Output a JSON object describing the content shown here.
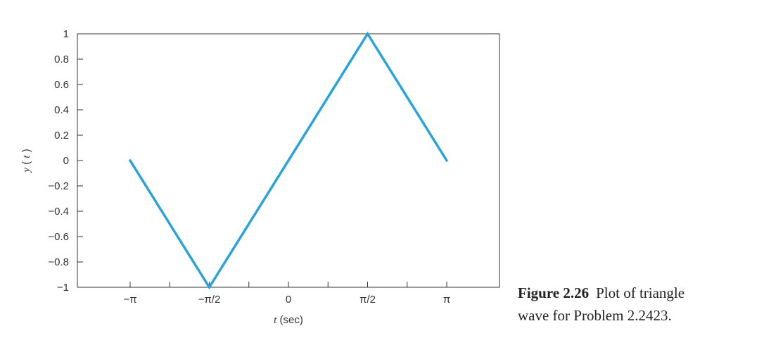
{
  "chart_data": {
    "type": "line",
    "xlabel_var": "t",
    "xlabel_unit": "(sec)",
    "ylabel": "y(t)",
    "ylabel_var": "y",
    "ylabel_arg": "t",
    "x_ticks": [
      {
        "value": -3.14159,
        "label": "−π"
      },
      {
        "value": -2.35619,
        "label": ""
      },
      {
        "value": -1.5708,
        "label": "−π/2"
      },
      {
        "value": -0.7854,
        "label": ""
      },
      {
        "value": 0,
        "label": "0"
      },
      {
        "value": 0.7854,
        "label": ""
      },
      {
        "value": 1.5708,
        "label": "π/2"
      },
      {
        "value": 2.35619,
        "label": ""
      },
      {
        "value": 3.14159,
        "label": "π"
      }
    ],
    "y_ticks": [
      {
        "value": 1,
        "label": "1"
      },
      {
        "value": 0.8,
        "label": "0.8"
      },
      {
        "value": 0.6,
        "label": "0.6"
      },
      {
        "value": 0.4,
        "label": "0.4"
      },
      {
        "value": 0.2,
        "label": "0.2"
      },
      {
        "value": 0,
        "label": "0"
      },
      {
        "value": -0.2,
        "label": "−0.2"
      },
      {
        "value": -0.4,
        "label": "−0.4"
      },
      {
        "value": -0.6,
        "label": "−0.6"
      },
      {
        "value": -0.8,
        "label": "−0.8"
      },
      {
        "value": -1,
        "label": "−1"
      }
    ],
    "xlim": [
      -4.1888,
      4.1888
    ],
    "ylim": [
      -1,
      1
    ],
    "grid": false,
    "series": [
      {
        "color": "#29a3dc",
        "x": [
          -3.14159,
          -1.5708,
          1.5708,
          3.14159
        ],
        "y": [
          0,
          -1,
          1,
          0
        ]
      }
    ]
  },
  "caption": {
    "label": "Figure 2.26",
    "text_line1": "Plot of triangle",
    "text_line2": "wave for Problem 2.2423."
  }
}
